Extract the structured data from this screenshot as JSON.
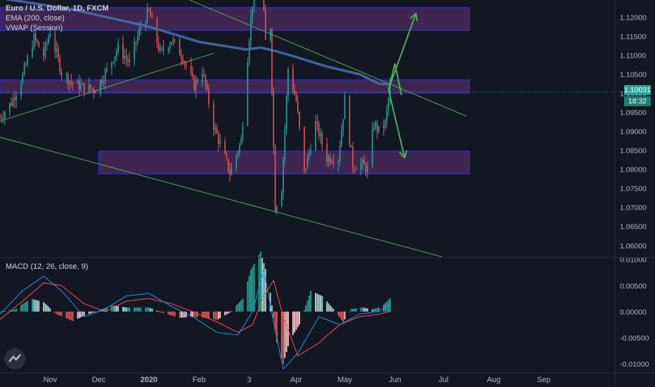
{
  "legend": {
    "title": "Euro / U.S. Dollar, 1D, FXCM",
    "ema": "EMA (200, close)",
    "vwap": "VWAP (Session)",
    "macd": "MACD (12, 26, close, 9)"
  },
  "price_badge": {
    "price": "1.10031",
    "timer": "18:32"
  },
  "colors": {
    "background": "#131722",
    "up": "#26a69a",
    "down": "#ef5350",
    "ema": "#4a6fb0",
    "zone_fill": "#4a2a5e",
    "zone_border": "#2b2bd8",
    "trendline": "#4caf50",
    "macd_line": "#2196f3",
    "signal_line": "#ff5252"
  },
  "chart_data": [
    {
      "type": "candlestick",
      "title": "Euro / U.S. Dollar, 1D, FXCM",
      "ylim": [
        1.057,
        1.1245
      ],
      "yticks": [
        "1.12000",
        "1.11500",
        "1.11000",
        "1.10500",
        "1.10000",
        "1.09500",
        "1.09000",
        "1.08500",
        "1.08000",
        "1.07500",
        "1.07000",
        "1.06500",
        "1.06000"
      ],
      "xticks": [
        "Nov",
        "Dec",
        "2020",
        "Feb",
        "3",
        "Apr",
        "May",
        "Jun",
        "Jul",
        "Aug",
        "Sep"
      ],
      "close_path": [
        [
          "2019-10-01",
          1.0935
        ],
        [
          "2019-10-08",
          1.0975
        ],
        [
          "2019-10-15",
          1.1045
        ],
        [
          "2019-10-22",
          1.1145
        ],
        [
          "2019-10-28",
          1.11
        ],
        [
          "2019-11-01",
          1.1165
        ],
        [
          "2019-11-08",
          1.1055
        ],
        [
          "2019-11-15",
          1.1025
        ],
        [
          "2019-11-22",
          1.1015
        ],
        [
          "2019-11-29",
          1.101
        ],
        [
          "2019-12-06",
          1.106
        ],
        [
          "2019-12-13",
          1.112
        ],
        [
          "2019-12-20",
          1.108
        ],
        [
          "2019-12-27",
          1.1175
        ],
        [
          "2020-01-01",
          1.1215
        ],
        [
          "2020-01-08",
          1.1105
        ],
        [
          "2020-01-15",
          1.114
        ],
        [
          "2020-01-22",
          1.1095
        ],
        [
          "2020-01-29",
          1.102
        ],
        [
          "2020-02-03",
          1.106
        ],
        [
          "2020-02-10",
          1.0915
        ],
        [
          "2020-02-17",
          1.083
        ],
        [
          "2020-02-20",
          1.079
        ],
        [
          "2020-02-27",
          1.0875
        ],
        [
          "2020-03-03",
          1.115
        ],
        [
          "2020-03-09",
          1.1415
        ],
        [
          "2020-03-13",
          1.1135
        ],
        [
          "2020-03-16",
          1.1175
        ],
        [
          "2020-03-19",
          1.07
        ],
        [
          "2020-03-23",
          1.075
        ],
        [
          "2020-03-27",
          1.1065
        ],
        [
          "2020-04-01",
          1.098
        ],
        [
          "2020-04-06",
          1.079
        ],
        [
          "2020-04-13",
          1.092
        ],
        [
          "2020-04-20",
          1.083
        ],
        [
          "2020-04-27",
          1.083
        ],
        [
          "2020-05-01",
          1.098
        ],
        [
          "2020-05-06",
          1.081
        ],
        [
          "2020-05-11",
          1.0815
        ],
        [
          "2020-05-15",
          1.08
        ],
        [
          "2020-05-19",
          1.092
        ],
        [
          "2020-05-22",
          1.09
        ],
        [
          "2020-05-26",
          1.092
        ],
        [
          "2020-05-29",
          1.1015
        ]
      ],
      "ema_200": [
        [
          "2019-10-01",
          1.125
        ],
        [
          "2019-11-15",
          1.122
        ],
        [
          "2020-01-01",
          1.1175
        ],
        [
          "2020-02-01",
          1.1135
        ],
        [
          "2020-03-01",
          1.1115
        ],
        [
          "2020-03-10",
          1.112
        ],
        [
          "2020-03-20",
          1.111
        ],
        [
          "2020-04-01",
          1.1095
        ],
        [
          "2020-04-20",
          1.107
        ],
        [
          "2020-05-10",
          1.105
        ],
        [
          "2020-05-22",
          1.1025
        ],
        [
          "2020-05-29",
          1.1023
        ]
      ],
      "zones": [
        {
          "from": "2019-10-01",
          "to": "2020-07-17",
          "y0": 1.1165,
          "y1": 1.1225
        },
        {
          "from": "2019-10-01",
          "to": "2020-07-17",
          "y0": 1.1,
          "y1": 1.1035
        },
        {
          "from": "2019-12-01",
          "to": "2020-07-17",
          "y0": 1.0788,
          "y1": 1.0848
        }
      ],
      "trendlines": [
        {
          "from": [
            "2019-09-26",
            1.092
          ],
          "to": [
            "2020-02-10",
            1.1105
          ]
        },
        {
          "from": [
            "2019-09-26",
            1.089
          ],
          "to": [
            "2020-06-30",
            1.057
          ]
        },
        {
          "from": [
            "2020-01-01",
            1.129
          ],
          "to": [
            "2020-07-15",
            1.094
          ]
        }
      ],
      "arrows": [
        {
          "from": [
            "2020-05-28",
            1.101
          ],
          "to": [
            "2020-06-14",
            1.121
          ]
        },
        {
          "from": [
            "2020-05-28",
            1.101
          ],
          "to": [
            "2020-06-07",
            1.083
          ]
        }
      ],
      "current_price": 1.10031
    },
    {
      "type": "histogram",
      "title": "MACD (12, 26, close, 9)",
      "ylim": [
        -0.0115,
        0.0101
      ],
      "yticks": [
        "0.01000",
        "0.00500",
        "0.00000",
        "-0.00500",
        "-0.01000"
      ],
      "histogram_path": [
        [
          "2019-10-01",
          0
        ],
        [
          "2019-10-10",
          0.0004
        ],
        [
          "2019-10-20",
          0.0025
        ],
        [
          "2019-10-28",
          0.0018
        ],
        [
          "2019-11-05",
          -0.0005
        ],
        [
          "2019-11-15",
          -0.0018
        ],
        [
          "2019-11-22",
          -0.0008
        ],
        [
          "2019-12-02",
          0.0004
        ],
        [
          "2019-12-10",
          0.0012
        ],
        [
          "2019-12-18",
          0.0008
        ],
        [
          "2020-01-01",
          0.0008
        ],
        [
          "2020-01-10",
          -0.0003
        ],
        [
          "2020-01-20",
          -0.0012
        ],
        [
          "2020-01-28",
          -0.001
        ],
        [
          "2020-02-05",
          -0.0012
        ],
        [
          "2020-02-12",
          -0.0016
        ],
        [
          "2020-02-20",
          -0.0002
        ],
        [
          "2020-02-28",
          0.0025
        ],
        [
          "2020-03-04",
          0.008
        ],
        [
          "2020-03-10",
          0.0115
        ],
        [
          "2020-03-15",
          0.006
        ],
        [
          "2020-03-20",
          -0.006
        ],
        [
          "2020-03-24",
          -0.01
        ],
        [
          "2020-03-28",
          -0.0055
        ],
        [
          "2020-04-03",
          -0.0025
        ],
        [
          "2020-04-10",
          0.004
        ],
        [
          "2020-04-17",
          0.003
        ],
        [
          "2020-04-24",
          0.0005
        ],
        [
          "2020-04-30",
          -0.002
        ],
        [
          "2020-05-05",
          0.0005
        ],
        [
          "2020-05-12",
          0.0008
        ],
        [
          "2020-05-18",
          0.0004
        ],
        [
          "2020-05-24",
          0.001
        ],
        [
          "2020-05-29",
          0.0026
        ]
      ],
      "macd_line": [
        [
          "2019-10-01",
          -0.0005
        ],
        [
          "2019-10-15",
          0.004
        ],
        [
          "2019-10-28",
          0.0068
        ],
        [
          "2019-11-08",
          0.004
        ],
        [
          "2019-11-22",
          -0.001
        ],
        [
          "2019-12-05",
          0.0005
        ],
        [
          "2019-12-18",
          0.003
        ],
        [
          "2020-01-01",
          0.0035
        ],
        [
          "2020-01-15",
          0.001
        ],
        [
          "2020-01-28",
          -0.001
        ],
        [
          "2020-02-12",
          -0.004
        ],
        [
          "2020-02-25",
          -0.0045
        ],
        [
          "2020-03-05",
          0.0
        ],
        [
          "2020-03-12",
          0.008
        ],
        [
          "2020-03-18",
          -0.002
        ],
        [
          "2020-03-24",
          -0.011
        ],
        [
          "2020-04-02",
          -0.008
        ],
        [
          "2020-04-15",
          -0.001
        ],
        [
          "2020-04-28",
          -0.0025
        ],
        [
          "2020-05-10",
          -0.0005
        ],
        [
          "2020-05-22",
          0.0
        ],
        [
          "2020-05-29",
          0.0015
        ]
      ],
      "signal_line": [
        [
          "2019-10-01",
          -0.0015
        ],
        [
          "2019-10-15",
          0.002
        ],
        [
          "2019-10-28",
          0.0055
        ],
        [
          "2019-11-08",
          0.005
        ],
        [
          "2019-11-22",
          0.0015
        ],
        [
          "2019-12-05",
          0.0
        ],
        [
          "2019-12-18",
          0.002
        ],
        [
          "2020-01-01",
          0.0025
        ],
        [
          "2020-01-15",
          0.0015
        ],
        [
          "2020-01-28",
          0.0
        ],
        [
          "2020-02-12",
          -0.002
        ],
        [
          "2020-02-25",
          -0.004
        ],
        [
          "2020-03-05",
          -0.0025
        ],
        [
          "2020-03-12",
          0.003
        ],
        [
          "2020-03-18",
          0.006
        ],
        [
          "2020-03-24",
          -0.001
        ],
        [
          "2020-04-02",
          -0.0085
        ],
        [
          "2020-04-15",
          -0.006
        ],
        [
          "2020-04-28",
          -0.0025
        ],
        [
          "2020-05-10",
          -0.001
        ],
        [
          "2020-05-22",
          -0.0005
        ],
        [
          "2020-05-29",
          0.0
        ]
      ]
    }
  ]
}
